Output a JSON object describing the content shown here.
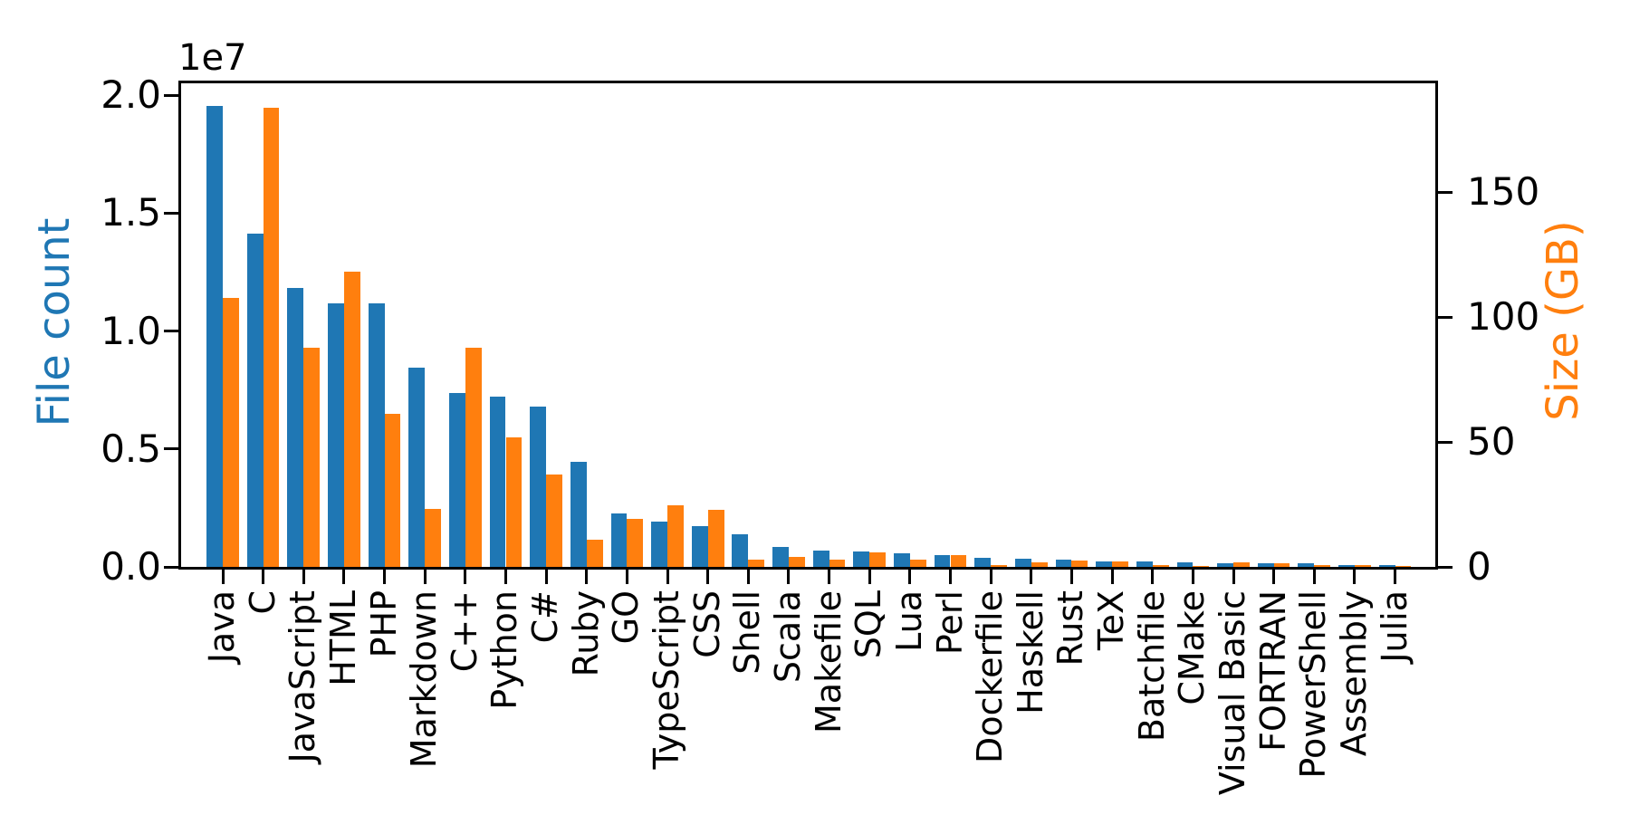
{
  "chart_data": {
    "type": "bar",
    "title": "",
    "grid": false,
    "legend": "none",
    "categories": [
      "Java",
      "C",
      "JavaScript",
      "HTML",
      "PHP",
      "Markdown",
      "C++",
      "Python",
      "C#",
      "Ruby",
      "GO",
      "TypeScript",
      "CSS",
      "Shell",
      "Scala",
      "Makefile",
      "SQL",
      "Lua",
      "Perl",
      "Dockerfile",
      "Haskell",
      "Rust",
      "TeX",
      "Batchfile",
      "CMake",
      "Visual Basic",
      "FORTRAN",
      "PowerShell",
      "Assembly",
      "Julia"
    ],
    "series": [
      {
        "name": "File count",
        "axis": "left",
        "color": "#1f77b4",
        "values": [
          19550000,
          14140000,
          11840000,
          11180000,
          11180000,
          8460000,
          7380000,
          7230000,
          6810000,
          4470000,
          2270000,
          1940000,
          1730000,
          1390000,
          840000,
          680000,
          660000,
          580000,
          500000,
          370000,
          340000,
          320000,
          250000,
          240000,
          180000,
          160000,
          140000,
          140000,
          80000,
          60000
        ]
      },
      {
        "name": "Size (GB)",
        "axis": "right",
        "color": "#ff7f0e",
        "values": [
          107.7,
          183.8,
          87.8,
          118.1,
          61.4,
          23.1,
          87.7,
          52.0,
          36.8,
          11.0,
          19.3,
          24.6,
          22.7,
          3.0,
          3.9,
          2.9,
          5.7,
          2.8,
          4.7,
          0.7,
          1.9,
          2.7,
          2.2,
          0.7,
          0.5,
          1.9,
          1.6,
          0.7,
          0.8,
          0.3
        ]
      }
    ],
    "left_axis": {
      "label": "File count",
      "color": "#1f77b4",
      "offset_text": "1e7",
      "range": [
        0,
        20500000
      ],
      "ticks": [
        {
          "value": 0,
          "label": "0.0"
        },
        {
          "value": 5000000,
          "label": "0.5"
        },
        {
          "value": 10000000,
          "label": "1.0"
        },
        {
          "value": 15000000,
          "label": "1.5"
        },
        {
          "value": 20000000,
          "label": "2.0"
        }
      ]
    },
    "right_axis": {
      "label": "Size (GB)",
      "color": "#ff7f0e",
      "range": [
        0,
        193.5
      ],
      "ticks": [
        {
          "value": 0,
          "label": "0"
        },
        {
          "value": 50,
          "label": "50"
        },
        {
          "value": 100,
          "label": "100"
        },
        {
          "value": 150,
          "label": "150"
        }
      ]
    },
    "tick_color": "#000000",
    "background_color": "#ffffff"
  }
}
